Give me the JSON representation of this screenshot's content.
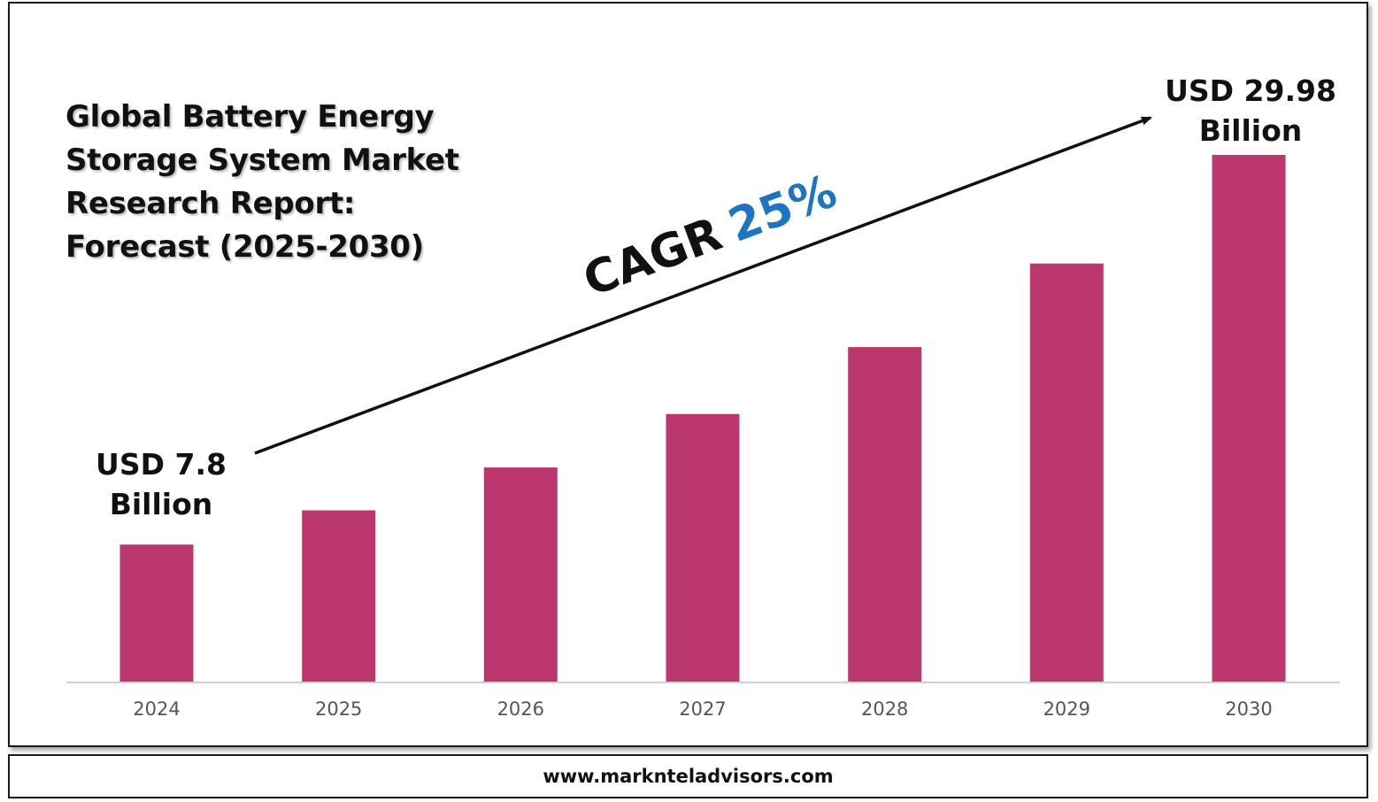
{
  "title": "Global Battery Energy Storage System Market Research Report: Forecast (2025-2030)",
  "footer": {
    "url": "www.marknteladvisors.com"
  },
  "colors": {
    "bar": "#bb376d",
    "cagr_value": "#1d74c2",
    "text": "#111111",
    "axis": "#d0d0d0",
    "tick": "#555555"
  },
  "cagr": {
    "label": "CAGR",
    "value": "25%"
  },
  "annotations": {
    "start_line1": "USD 7.8",
    "start_line2": "Billion",
    "end_line1": "USD 29.98",
    "end_line2": "Billion"
  },
  "chart_data": {
    "type": "bar",
    "title": "Global Battery Energy Storage System Market Research Report: Forecast (2025-2030)",
    "categories": [
      "2024",
      "2025",
      "2026",
      "2027",
      "2028",
      "2029",
      "2030"
    ],
    "values": [
      7.8,
      9.75,
      12.19,
      15.23,
      19.04,
      23.8,
      29.98
    ],
    "ylim": [
      0,
      29.98
    ],
    "xlabel": "",
    "ylabel": "",
    "grid": false,
    "legend": "none"
  }
}
